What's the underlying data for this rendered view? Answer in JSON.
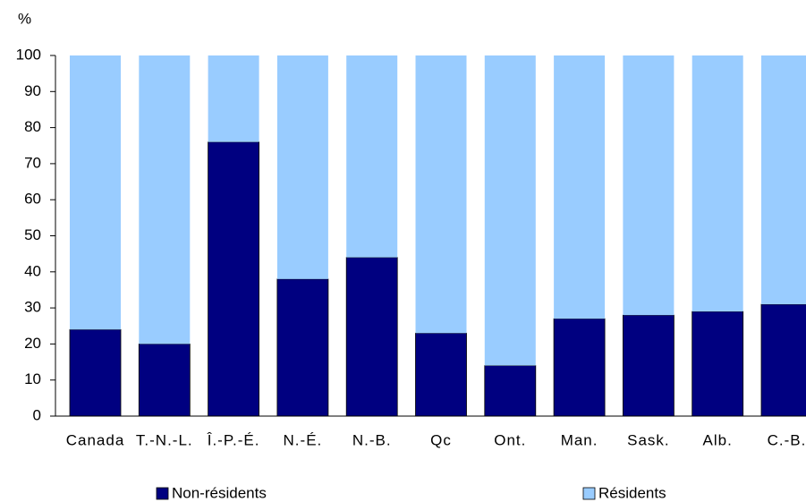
{
  "chart_data": {
    "type": "stacked_bar",
    "y_label": "%",
    "categories": [
      "Canada",
      "T.-N.-L.",
      "Î.-P.-É.",
      "N.-É.",
      "N.-B.",
      "Qc",
      "Ont.",
      "Man.",
      "Sask.",
      "Alb.",
      "C.-B."
    ],
    "series": [
      {
        "name": "Non-résidents",
        "color": "#000080",
        "values": [
          24,
          20,
          76,
          38,
          44,
          23,
          14,
          27,
          28,
          29,
          31
        ]
      },
      {
        "name": "Résidents",
        "color": "#99ccff",
        "values": [
          76,
          80,
          24,
          62,
          56,
          77,
          86,
          73,
          72,
          71,
          69
        ]
      }
    ],
    "ylim": [
      0,
      100
    ],
    "yticks": [
      0,
      10,
      20,
      30,
      40,
      50,
      60,
      70,
      80,
      90,
      100
    ]
  }
}
